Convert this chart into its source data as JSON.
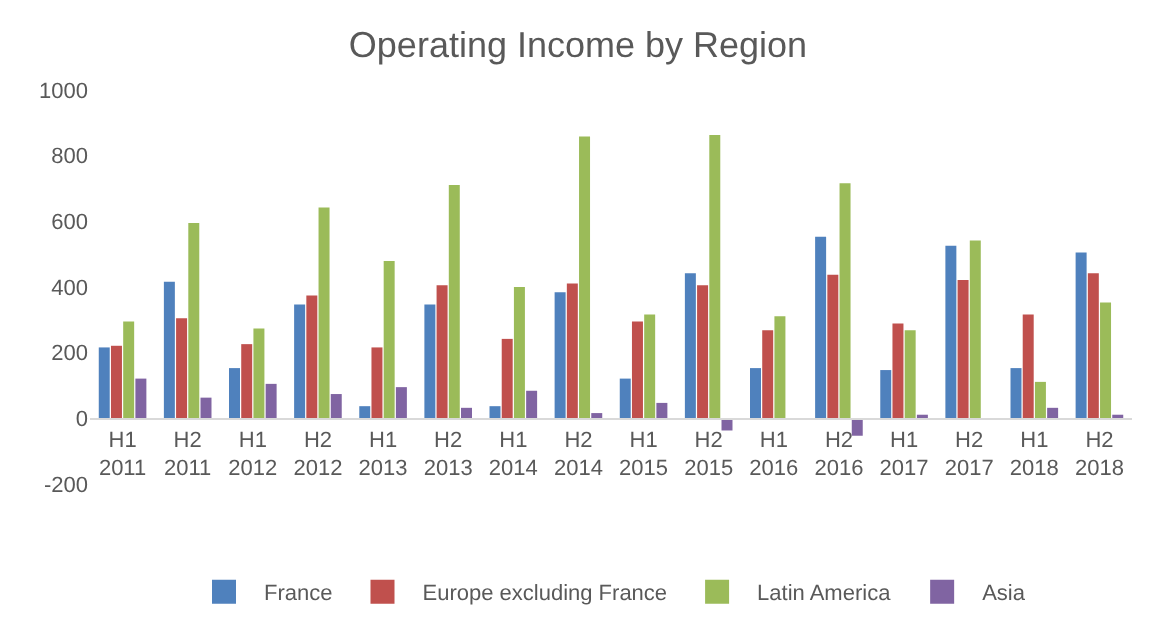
{
  "chart_data": {
    "type": "bar",
    "title": "Operating Income by Region",
    "categories": [
      "H1\n2011",
      "H2\n2011",
      "H1\n2012",
      "H2\n2012",
      "H1\n2013",
      "H2\n2013",
      "H1\n2014",
      "H2\n2014",
      "H1\n2015",
      "H2\n2015",
      "H1\n2016",
      "H2\n2016",
      "H1\n2017",
      "H2\n2017",
      "H1\n2018",
      "H2\n2018"
    ],
    "series": [
      {
        "name": "France",
        "color": "#4f81bd",
        "values": [
          216,
          416,
          153,
          347,
          37,
          347,
          37,
          384,
          121,
          442,
          153,
          553,
          147,
          526,
          153,
          505
        ]
      },
      {
        "name": "Europe excluding France",
        "color": "#c0504d",
        "values": [
          221,
          305,
          226,
          374,
          216,
          405,
          242,
          411,
          295,
          405,
          268,
          437,
          289,
          421,
          316,
          442
        ]
      },
      {
        "name": "Latin America",
        "color": "#9bbb59",
        "values": [
          295,
          595,
          274,
          642,
          479,
          711,
          400,
          858,
          316,
          863,
          311,
          716,
          268,
          542,
          111,
          353
        ]
      },
      {
        "name": "Asia",
        "color": "#8064a2",
        "values": [
          121,
          63,
          105,
          74,
          95,
          32,
          84,
          16,
          47,
          -37,
          0,
          -53,
          11,
          -5,
          32,
          11
        ]
      }
    ],
    "ylim": [
      -200,
      1000
    ],
    "yticks": [
      -200,
      0,
      200,
      400,
      600,
      800,
      1000
    ],
    "grid": false,
    "legend": "bottom"
  }
}
